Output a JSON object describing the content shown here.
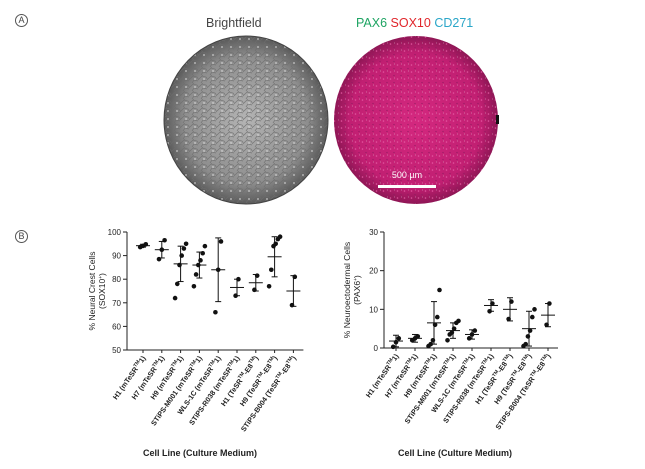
{
  "panel_a": {
    "letter": "A",
    "brightfield_title": "Brightfield",
    "fluor_title": {
      "pax6": "PAX6",
      "sox10": "SOX10",
      "cd271": "CD271",
      "pax6_color": "#1fa463",
      "sox10_color": "#e0262b",
      "cd271_color": "#2aa6c8"
    },
    "scale_bar_label": "500 µm"
  },
  "panel_b": {
    "letter": "B"
  },
  "chart_data": [
    {
      "type": "scatter",
      "ylabel_main": "% Neural  Crest Cells",
      "ylabel_sub": "(SOX10",
      "ylabel_sup": "+",
      "ylabel_end": ")",
      "xlabel": "Cell Line (Culture Medium)",
      "ylim": [
        50,
        100
      ],
      "yticks": [
        "50",
        "60",
        "70",
        "80",
        "90",
        "100"
      ],
      "grid": false,
      "categories": [
        {
          "base": "H1 (mTeSR",
          "sup": "TM",
          "end": "1)"
        },
        {
          "base": "H7 (mTeSR",
          "sup": "TM",
          "end": "1)"
        },
        {
          "base": "H9 (mTeSR",
          "sup": "TM",
          "end": "1)"
        },
        {
          "base": "STiPS-M001 (mTeSR",
          "sup": "TM",
          "end": "1)"
        },
        {
          "base": "WLS-1C (mTeSR",
          "sup": "TM",
          "end": "1)"
        },
        {
          "base": "STiPS-R038 (mTeSR",
          "sup": "TM",
          "end": "1)"
        },
        {
          "base": "H1 (TeSR",
          "sup": "TM",
          "end": "-E8",
          "sup2": "TM",
          "end2": ")"
        },
        {
          "base": "H9 (TeSR",
          "sup": "TM",
          "end": "-E8",
          "sup2": "TM",
          "end2": ")"
        },
        {
          "base": "STiPS-B004 (TeSR",
          "sup": "TM",
          "end": "-E8",
          "sup2": "TM",
          "end2": ")"
        }
      ],
      "series": [
        {
          "mean": 94.2,
          "sd": 0.6,
          "points": [
            93.6,
            94.1,
            94.8
          ]
        },
        {
          "mean": 92.5,
          "sd": 3.5,
          "points": [
            88.5,
            92.5,
            96.5
          ]
        },
        {
          "mean": 86.5,
          "sd": 7.5,
          "points": [
            72,
            78,
            86,
            90,
            93,
            95
          ]
        },
        {
          "mean": 86.0,
          "sd": 5.5,
          "points": [
            77,
            82,
            86,
            88,
            91,
            94
          ]
        },
        {
          "mean": 84.0,
          "sd": 13.5,
          "points": [
            66,
            84,
            96
          ]
        },
        {
          "mean": 76.5,
          "sd": 3.5,
          "points": [
            73,
            80
          ]
        },
        {
          "mean": 78.5,
          "sd": 3.5,
          "points": [
            75.5,
            81.5
          ]
        },
        {
          "mean": 89.5,
          "sd": 8.5,
          "points": [
            77,
            84,
            94,
            95,
            97,
            98
          ]
        },
        {
          "mean": 75.0,
          "sd": 6.5,
          "points": [
            69,
            81
          ]
        }
      ]
    },
    {
      "type": "scatter",
      "ylabel_main": "% Neuroectodermal Cells",
      "ylabel_sub": "(PAX6",
      "ylabel_sup": "+",
      "ylabel_end": ")",
      "xlabel": "Cell Line (Culture Medium)",
      "ylim": [
        0,
        30
      ],
      "yticks": [
        "0",
        "10",
        "20",
        "30"
      ],
      "grid": false,
      "categories": [
        {
          "base": "H1 (mTeSR",
          "sup": "TM",
          "end": "1)"
        },
        {
          "base": "H7 (mTeSR",
          "sup": "TM",
          "end": "1)"
        },
        {
          "base": "H9 (mTeSR",
          "sup": "TM",
          "end": "1)"
        },
        {
          "base": "STiPS-M001 (mTeSR",
          "sup": "TM",
          "end": "1)"
        },
        {
          "base": "WLS-1C (mTeSR",
          "sup": "TM",
          "end": "1)"
        },
        {
          "base": "STiPS-R038 (mTeSR",
          "sup": "TM",
          "end": "1)"
        },
        {
          "base": "H1 (TeSR",
          "sup": "TM",
          "end": "-E8",
          "sup2": "TM",
          "end2": ")"
        },
        {
          "base": "H9 (TeSR",
          "sup": "TM",
          "end": "-E8",
          "sup2": "TM",
          "end2": ")"
        },
        {
          "base": "STiPS-B004 (TeSR",
          "sup": "TM",
          "end": "-E8",
          "sup2": "TM",
          "end2": ")"
        }
      ],
      "series": [
        {
          "mean": 1.8,
          "sd": 1.5,
          "points": [
            0.3,
            1.5,
            2.5
          ]
        },
        {
          "mean": 2.5,
          "sd": 1.0,
          "points": [
            2.0,
            2.5,
            3.0
          ]
        },
        {
          "mean": 6.5,
          "sd": 5.5,
          "points": [
            0.5,
            1.0,
            2.0,
            6.0,
            8.0,
            15.0
          ]
        },
        {
          "mean": 4.5,
          "sd": 2.0,
          "points": [
            2.0,
            3.5,
            4.0,
            5.0,
            6.5,
            7.0
          ]
        },
        {
          "mean": 3.5,
          "sd": 1.2,
          "points": [
            2.5,
            3.5,
            4.5
          ]
        },
        {
          "mean": 11.0,
          "sd": 1.5,
          "points": [
            9.5,
            11.5
          ]
        },
        {
          "mean": 10.0,
          "sd": 3.0,
          "points": [
            7.5,
            12.0
          ]
        },
        {
          "mean": 5.0,
          "sd": 4.5,
          "points": [
            0.5,
            1.0,
            3.0,
            4.5,
            8.0,
            10.0
          ]
        },
        {
          "mean": 8.5,
          "sd": 3.0,
          "points": [
            6.0,
            11.5
          ]
        }
      ]
    }
  ]
}
